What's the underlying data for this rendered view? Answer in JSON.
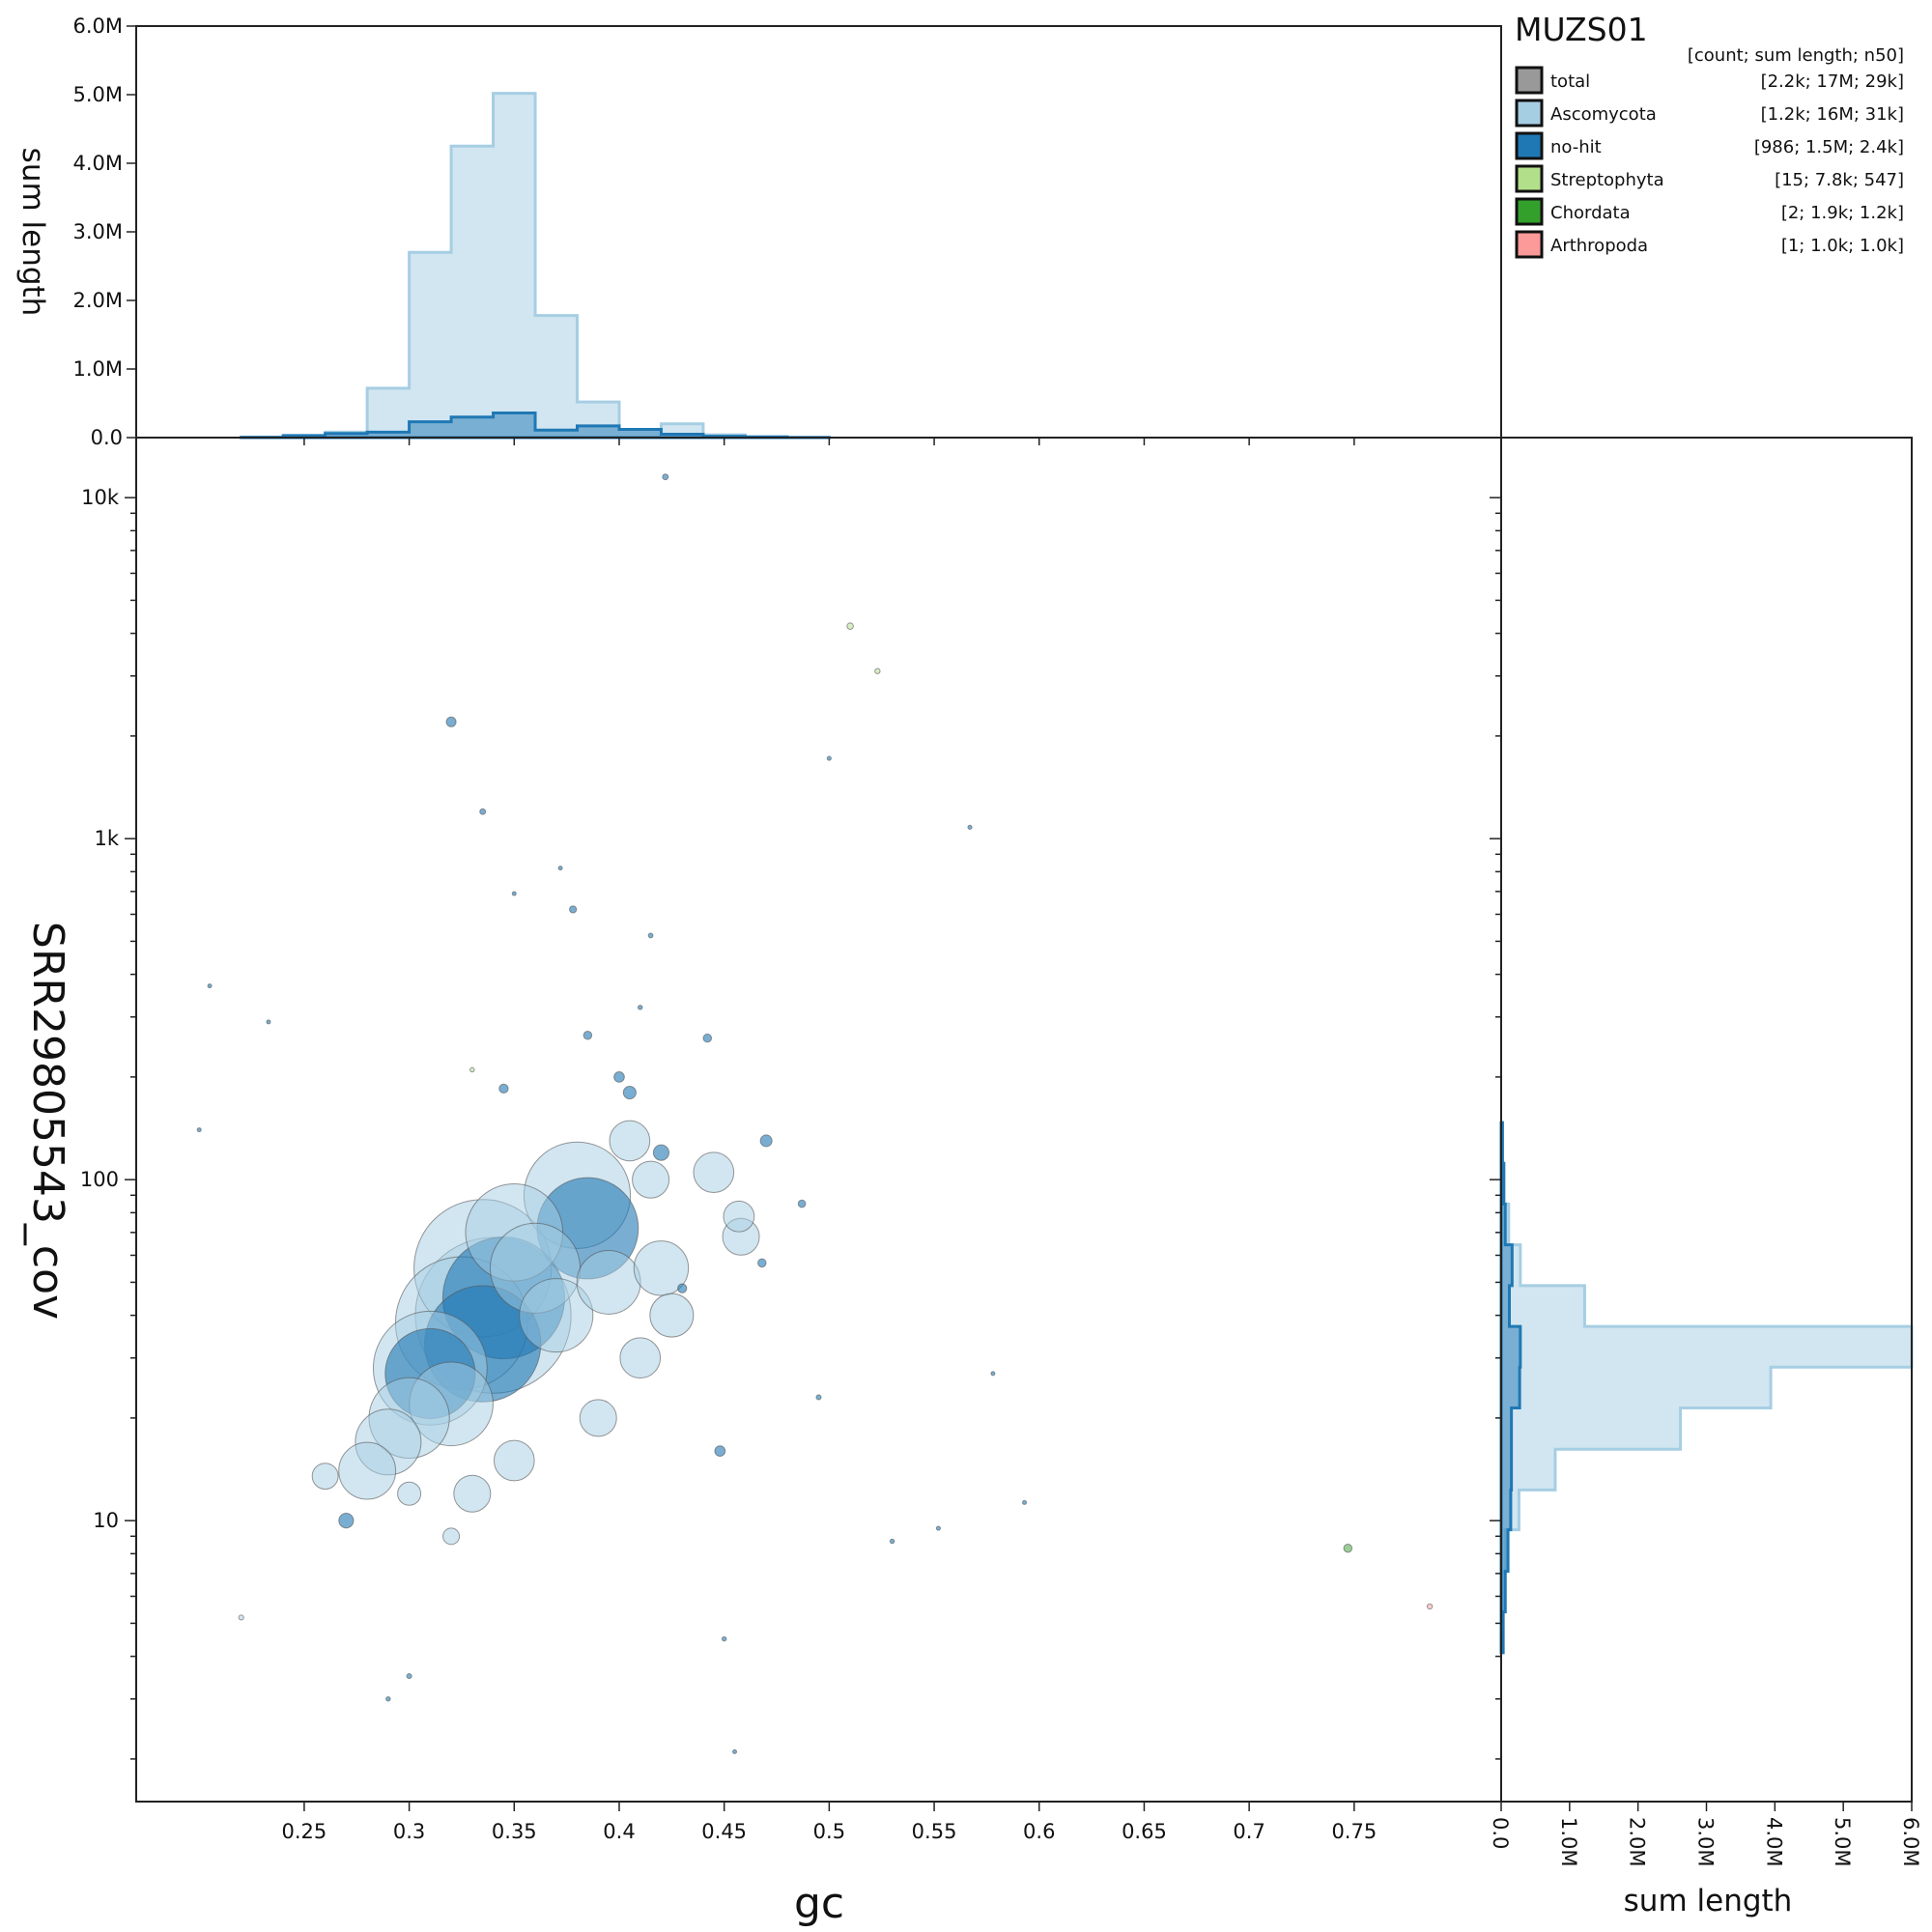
{
  "chart_data": {
    "type": "scatter",
    "title": "MUZS01",
    "xlabel": "gc",
    "ylabel": "SRR29805543_cov",
    "top_hist_ylabel": "sum length",
    "right_hist_xlabel": "sum length",
    "xlim": [
      0.17,
      0.82
    ],
    "ylim_log": [
      1.5,
      15000
    ],
    "y_scale": "log",
    "x_ticks": [
      "0.25",
      "0.3",
      "0.35",
      "0.4",
      "0.45",
      "0.5",
      "0.55",
      "0.6",
      "0.65",
      "0.7",
      "0.75"
    ],
    "y_ticks": [
      "10",
      "100",
      "1k",
      "10k"
    ],
    "hist_ticks": [
      "0.0",
      "1.0M",
      "2.0M",
      "3.0M",
      "4.0M",
      "5.0M",
      "6.0M"
    ],
    "hist_max": 6000000,
    "legend": {
      "header": "[count; sum length; n50]",
      "placement": "top-right",
      "items": [
        {
          "name": "total",
          "stats": "[2.2k; 17M; 29k]",
          "color": "#999999"
        },
        {
          "name": "Ascomycota",
          "stats": "[1.2k; 16M; 31k]",
          "color": "#a6cee3"
        },
        {
          "name": "no-hit",
          "stats": "[986; 1.5M; 2.4k]",
          "color": "#1f78b4"
        },
        {
          "name": "Streptophyta",
          "stats": "[15; 7.8k; 547]",
          "color": "#b2df8a"
        },
        {
          "name": "Chordata",
          "stats": "[2; 1.9k; 1.2k]",
          "color": "#33a02c"
        },
        {
          "name": "Arthropoda",
          "stats": "[1; 1.0k; 1.0k]",
          "color": "#fb9a99"
        }
      ]
    },
    "gc_histogram": {
      "bin_edges": [
        0.22,
        0.24,
        0.26,
        0.28,
        0.3,
        0.32,
        0.34,
        0.36,
        0.38,
        0.4,
        0.42,
        0.44,
        0.46,
        0.48,
        0.5
      ],
      "series": [
        {
          "name": "Ascomycota",
          "values": [
            0,
            10000,
            80000,
            720000,
            2700000,
            4250000,
            5020000,
            1780000,
            520000,
            120000,
            200000,
            40000,
            15000,
            3000
          ]
        },
        {
          "name": "no-hit",
          "values": [
            5000,
            30000,
            60000,
            80000,
            230000,
            300000,
            360000,
            110000,
            170000,
            120000,
            50000,
            20000,
            8000,
            2000
          ]
        }
      ]
    },
    "cov_histogram": {
      "bin_edges": [
        4.1,
        5.4,
        7.1,
        9.4,
        12.3,
        16.2,
        21.4,
        28.2,
        37.1,
        48.9,
        64.4,
        84.8,
        111.7,
        147
      ],
      "series": [
        {
          "name": "Ascomycota",
          "values": [
            0,
            20000,
            60000,
            260000,
            790000,
            2620000,
            3940000,
            6200000,
            1220000,
            280000,
            110000,
            0,
            0
          ]
        },
        {
          "name": "no-hit",
          "values": [
            30000,
            60000,
            100000,
            140000,
            150000,
            150000,
            270000,
            280000,
            120000,
            160000,
            60000,
            40000,
            20000
          ]
        }
      ]
    },
    "points": [
      {
        "gc": 0.34,
        "cov": 40,
        "len": 900000,
        "taxon": "Ascomycota"
      },
      {
        "gc": 0.335,
        "cov": 55,
        "len": 700000,
        "taxon": "Ascomycota"
      },
      {
        "gc": 0.325,
        "cov": 38,
        "len": 650000,
        "taxon": "Ascomycota"
      },
      {
        "gc": 0.345,
        "cov": 45,
        "len": 550000,
        "taxon": "no-hit"
      },
      {
        "gc": 0.335,
        "cov": 33,
        "len": 500000,
        "taxon": "no-hit"
      },
      {
        "gc": 0.31,
        "cov": 28,
        "len": 480000,
        "taxon": "Ascomycota"
      },
      {
        "gc": 0.38,
        "cov": 90,
        "len": 420000,
        "taxon": "Ascomycota"
      },
      {
        "gc": 0.385,
        "cov": 72,
        "len": 380000,
        "taxon": "no-hit"
      },
      {
        "gc": 0.31,
        "cov": 27,
        "len": 300000,
        "taxon": "no-hit"
      },
      {
        "gc": 0.35,
        "cov": 70,
        "len": 350000,
        "taxon": "Ascomycota"
      },
      {
        "gc": 0.36,
        "cov": 55,
        "len": 300000,
        "taxon": "Ascomycota"
      },
      {
        "gc": 0.32,
        "cov": 22,
        "len": 260000,
        "taxon": "Ascomycota"
      },
      {
        "gc": 0.3,
        "cov": 20,
        "len": 240000,
        "taxon": "Ascomycota"
      },
      {
        "gc": 0.29,
        "cov": 17,
        "len": 160000,
        "taxon": "Ascomycota"
      },
      {
        "gc": 0.28,
        "cov": 14,
        "len": 120000,
        "taxon": "Ascomycota"
      },
      {
        "gc": 0.37,
        "cov": 40,
        "len": 200000,
        "taxon": "Ascomycota"
      },
      {
        "gc": 0.395,
        "cov": 50,
        "len": 150000,
        "taxon": "Ascomycota"
      },
      {
        "gc": 0.42,
        "cov": 55,
        "len": 110000,
        "taxon": "Ascomycota"
      },
      {
        "gc": 0.405,
        "cov": 130,
        "len": 60000,
        "taxon": "Ascomycota"
      },
      {
        "gc": 0.415,
        "cov": 100,
        "len": 50000,
        "taxon": "Ascomycota"
      },
      {
        "gc": 0.445,
        "cov": 105,
        "len": 60000,
        "taxon": "Ascomycota"
      },
      {
        "gc": 0.458,
        "cov": 68,
        "len": 50000,
        "taxon": "Ascomycota"
      },
      {
        "gc": 0.457,
        "cov": 78,
        "len": 35000,
        "taxon": "Ascomycota"
      },
      {
        "gc": 0.425,
        "cov": 40,
        "len": 70000,
        "taxon": "Ascomycota"
      },
      {
        "gc": 0.41,
        "cov": 30,
        "len": 60000,
        "taxon": "Ascomycota"
      },
      {
        "gc": 0.39,
        "cov": 20,
        "len": 50000,
        "taxon": "Ascomycota"
      },
      {
        "gc": 0.35,
        "cov": 15,
        "len": 60000,
        "taxon": "Ascomycota"
      },
      {
        "gc": 0.33,
        "cov": 12,
        "len": 50000,
        "taxon": "Ascomycota"
      },
      {
        "gc": 0.26,
        "cov": 13.5,
        "len": 25000,
        "taxon": "Ascomycota"
      },
      {
        "gc": 0.3,
        "cov": 12,
        "len": 20000,
        "taxon": "Ascomycota"
      },
      {
        "gc": 0.32,
        "cov": 9,
        "len": 10000,
        "taxon": "Ascomycota"
      },
      {
        "gc": 0.27,
        "cov": 10,
        "len": 8000,
        "taxon": "no-hit"
      },
      {
        "gc": 0.42,
        "cov": 120,
        "len": 9000,
        "taxon": "no-hit"
      },
      {
        "gc": 0.405,
        "cov": 180,
        "len": 6000,
        "taxon": "no-hit"
      },
      {
        "gc": 0.4,
        "cov": 200,
        "len": 4000,
        "taxon": "no-hit"
      },
      {
        "gc": 0.47,
        "cov": 130,
        "len": 5000,
        "taxon": "no-hit"
      },
      {
        "gc": 0.448,
        "cov": 16,
        "len": 4000,
        "taxon": "no-hit"
      },
      {
        "gc": 0.32,
        "cov": 2200,
        "len": 3500,
        "taxon": "no-hit"
      },
      {
        "gc": 0.378,
        "cov": 620,
        "len": 1800,
        "taxon": "no-hit"
      },
      {
        "gc": 0.345,
        "cov": 185,
        "len": 3000,
        "taxon": "no-hit"
      },
      {
        "gc": 0.385,
        "cov": 265,
        "len": 2500,
        "taxon": "no-hit"
      },
      {
        "gc": 0.442,
        "cov": 260,
        "len": 2500,
        "taxon": "no-hit"
      },
      {
        "gc": 0.335,
        "cov": 1200,
        "len": 1200,
        "taxon": "no-hit"
      },
      {
        "gc": 0.422,
        "cov": 11500,
        "len": 1200,
        "taxon": "no-hit"
      },
      {
        "gc": 0.51,
        "cov": 4200,
        "len": 1500,
        "taxon": "Streptophyta"
      },
      {
        "gc": 0.523,
        "cov": 3100,
        "len": 1000,
        "taxon": "Streptophyta"
      },
      {
        "gc": 0.747,
        "cov": 8.3,
        "len": 2500,
        "taxon": "Chordata"
      },
      {
        "gc": 0.786,
        "cov": 5.6,
        "len": 1000,
        "taxon": "Arthropoda"
      },
      {
        "gc": 0.487,
        "cov": 85,
        "len": 2000,
        "taxon": "no-hit"
      },
      {
        "gc": 0.468,
        "cov": 57,
        "len": 2500,
        "taxon": "no-hit"
      },
      {
        "gc": 0.43,
        "cov": 48,
        "len": 3000,
        "taxon": "no-hit"
      },
      {
        "gc": 0.415,
        "cov": 520,
        "len": 800,
        "taxon": "no-hit"
      },
      {
        "gc": 0.41,
        "cov": 320,
        "len": 700,
        "taxon": "no-hit"
      },
      {
        "gc": 0.33,
        "cov": 210,
        "len": 700,
        "taxon": "Streptophyta"
      },
      {
        "gc": 0.2,
        "cov": 140,
        "len": 500,
        "taxon": "no-hit"
      },
      {
        "gc": 0.205,
        "cov": 370,
        "len": 500,
        "taxon": "no-hit"
      },
      {
        "gc": 0.22,
        "cov": 5.2,
        "len": 900,
        "taxon": "Ascomycota"
      },
      {
        "gc": 0.233,
        "cov": 290,
        "len": 500,
        "taxon": "no-hit"
      },
      {
        "gc": 0.552,
        "cov": 9.5,
        "len": 600,
        "taxon": "no-hit"
      },
      {
        "gc": 0.593,
        "cov": 11.3,
        "len": 500,
        "taxon": "no-hit"
      },
      {
        "gc": 0.567,
        "cov": 1080,
        "len": 600,
        "taxon": "no-hit"
      },
      {
        "gc": 0.5,
        "cov": 1720,
        "len": 600,
        "taxon": "no-hit"
      },
      {
        "gc": 0.495,
        "cov": 23,
        "len": 900,
        "taxon": "no-hit"
      },
      {
        "gc": 0.53,
        "cov": 8.7,
        "len": 700,
        "taxon": "no-hit"
      },
      {
        "gc": 0.578,
        "cov": 27,
        "len": 500,
        "taxon": "no-hit"
      },
      {
        "gc": 0.45,
        "cov": 4.5,
        "len": 700,
        "taxon": "no-hit"
      },
      {
        "gc": 0.372,
        "cov": 820,
        "len": 500,
        "taxon": "no-hit"
      },
      {
        "gc": 0.35,
        "cov": 690,
        "len": 500,
        "taxon": "no-hit"
      },
      {
        "gc": 0.3,
        "cov": 3.5,
        "len": 900,
        "taxon": "no-hit"
      },
      {
        "gc": 0.29,
        "cov": 3.0,
        "len": 700,
        "taxon": "no-hit"
      },
      {
        "gc": 0.455,
        "cov": 2.1,
        "len": 500,
        "taxon": "no-hit"
      }
    ]
  }
}
